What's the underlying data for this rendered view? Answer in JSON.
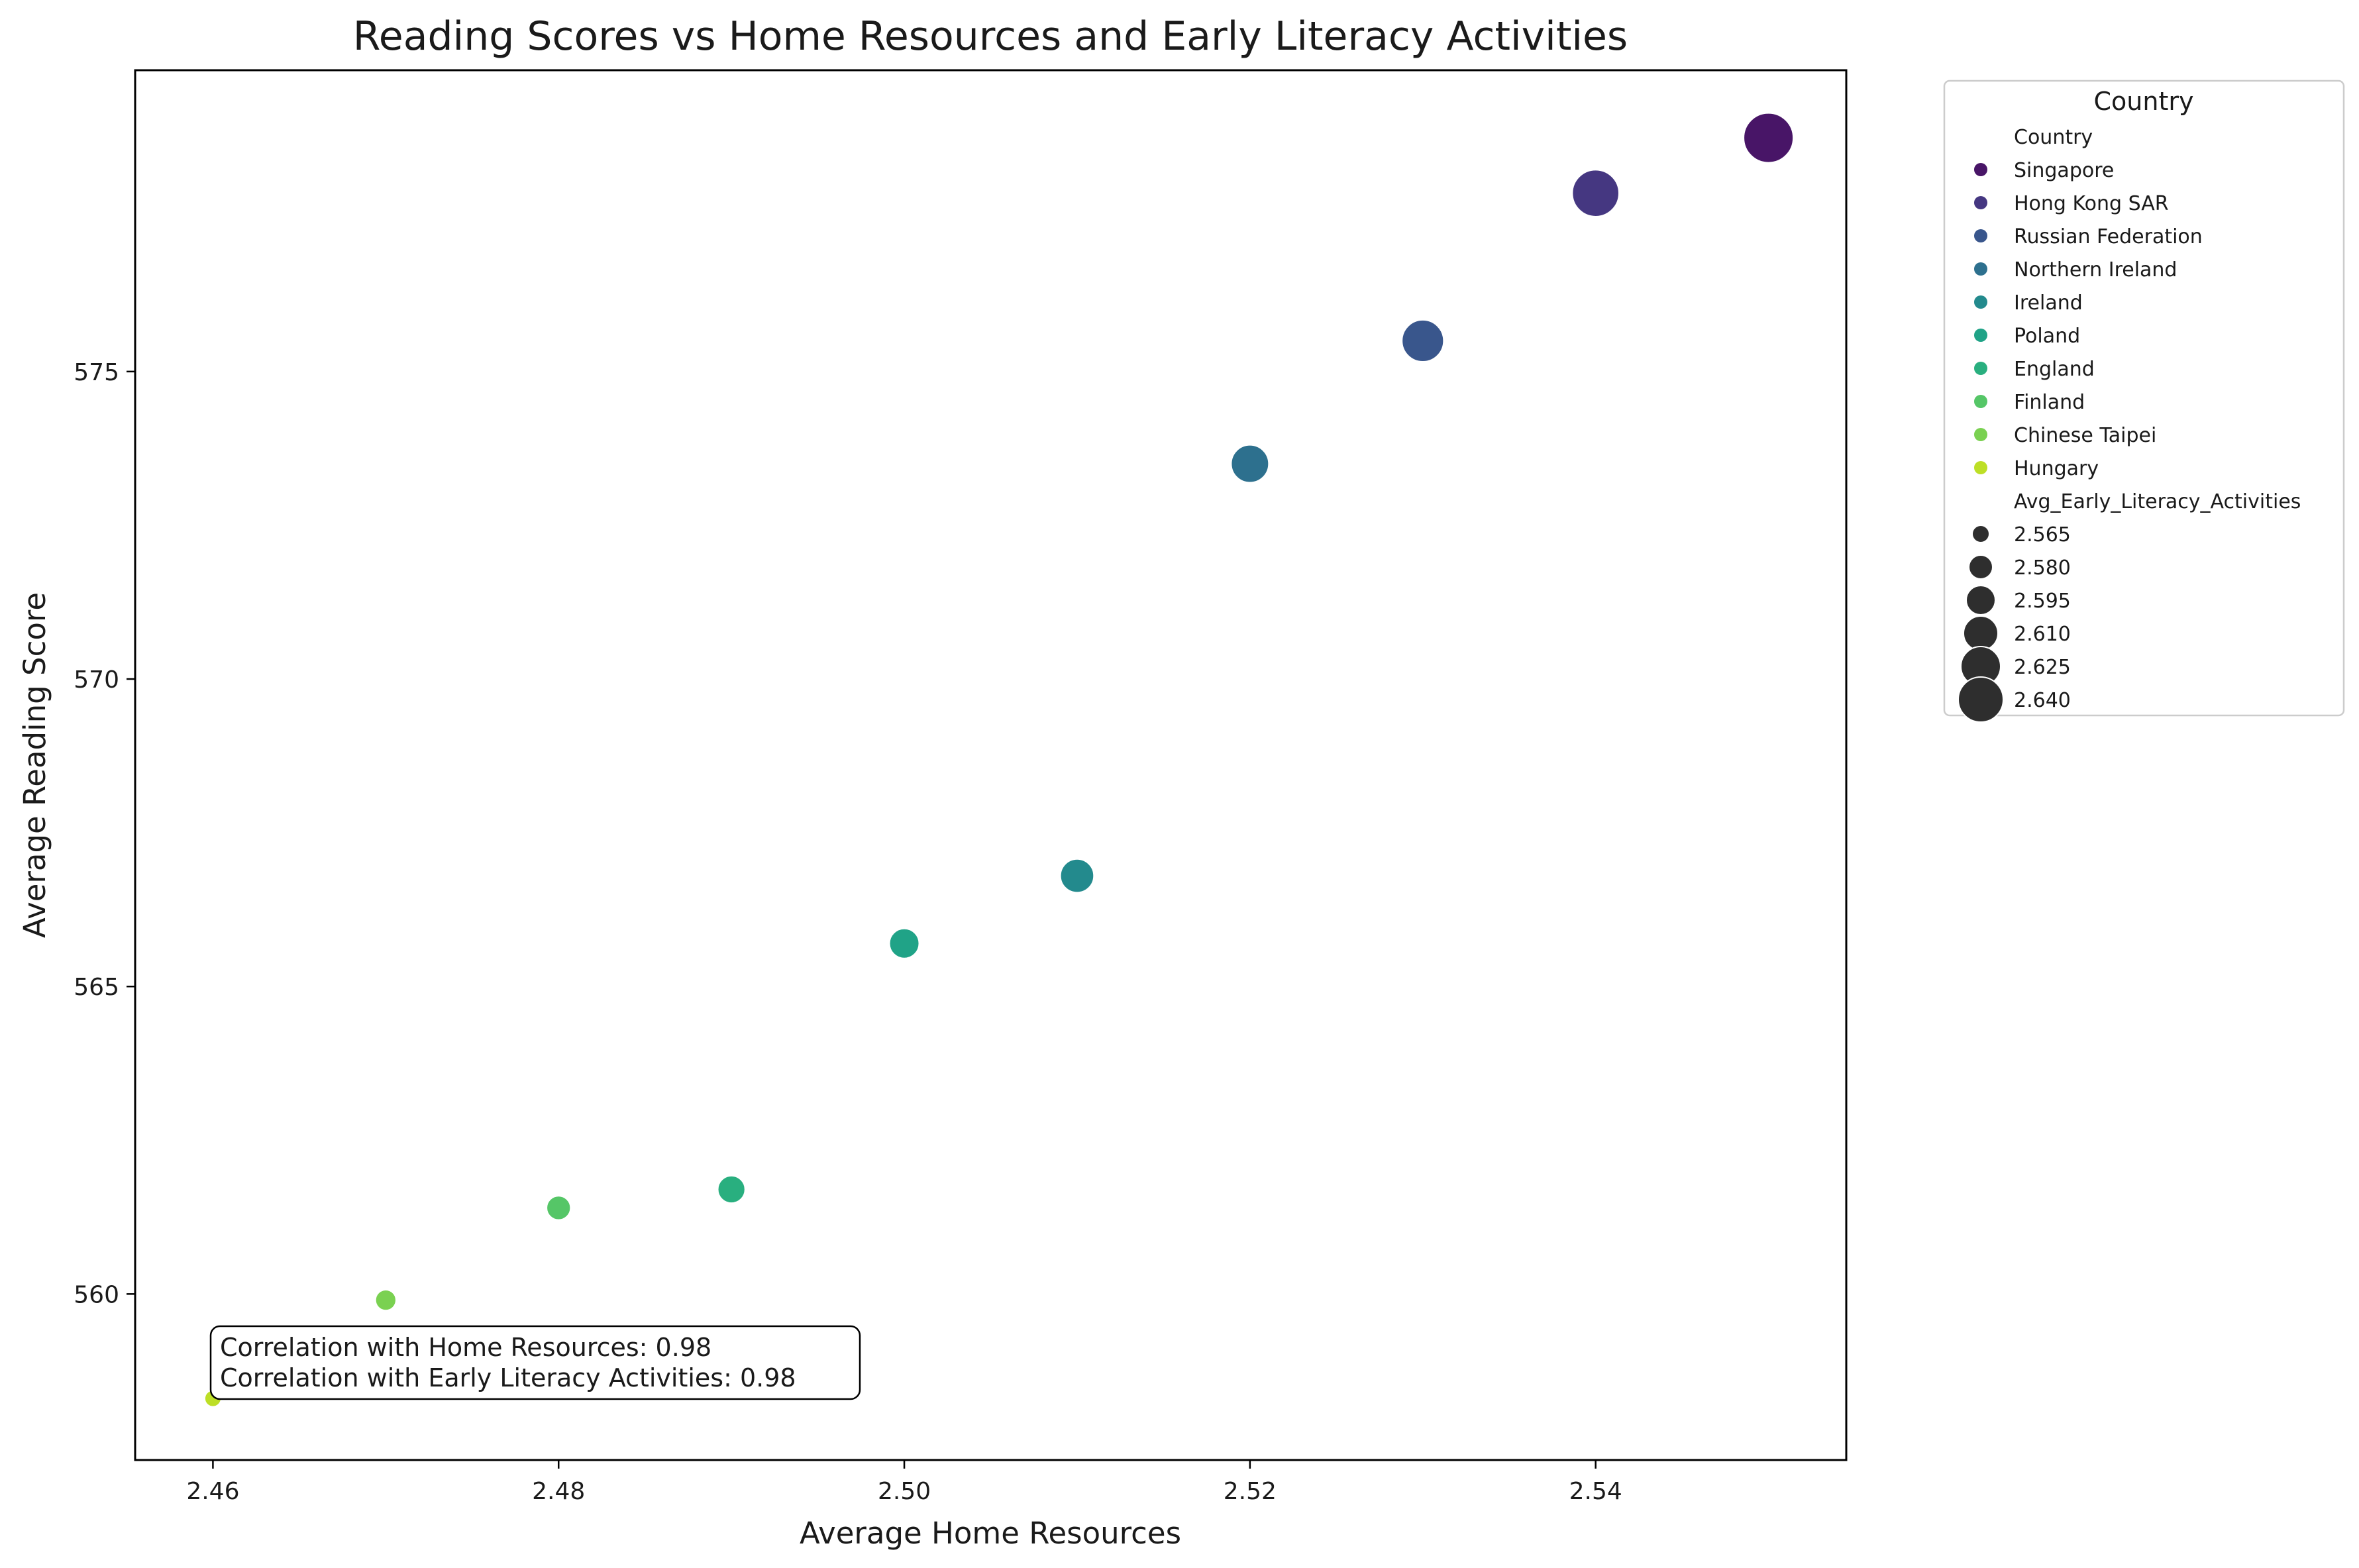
{
  "chart_data": {
    "type": "scatter",
    "title": "Reading Scores vs Home Resources and Early Literacy Activities",
    "xlabel": "Average Home Resources",
    "ylabel": "Average Reading Score",
    "xlim": [
      2.4555,
      2.5545
    ],
    "ylim": [
      557.3,
      579.9
    ],
    "x_ticks": [
      2.46,
      2.48,
      2.5,
      2.52,
      2.54
    ],
    "x_tick_labels": [
      "2.46",
      "2.48",
      "2.50",
      "2.52",
      "2.54"
    ],
    "y_ticks": [
      560,
      565,
      570,
      575
    ],
    "y_tick_labels": [
      "560",
      "565",
      "570",
      "575"
    ],
    "grid": false,
    "legend_placement": "outside-upper-right",
    "series": [
      {
        "name": "Singapore",
        "x": 2.55,
        "y": 578.8,
        "size": 2.641,
        "color": "#481567"
      },
      {
        "name": "Hong Kong SAR",
        "x": 2.54,
        "y": 577.9,
        "size": 2.634,
        "color": "#453781"
      },
      {
        "name": "Russian Federation",
        "x": 2.53,
        "y": 575.5,
        "size": 2.622,
        "color": "#39568c"
      },
      {
        "name": "Northern Ireland",
        "x": 2.52,
        "y": 573.5,
        "size": 2.612,
        "color": "#2d708e"
      },
      {
        "name": "Ireland",
        "x": 2.51,
        "y": 566.8,
        "size": 2.602,
        "color": "#238a8d"
      },
      {
        "name": "Poland",
        "x": 2.5,
        "y": 565.7,
        "size": 2.593,
        "color": "#20a387"
      },
      {
        "name": "England",
        "x": 2.49,
        "y": 561.7,
        "size": 2.587,
        "color": "#29af7f"
      },
      {
        "name": "Finland",
        "x": 2.48,
        "y": 561.4,
        "size": 2.579,
        "color": "#55c667"
      },
      {
        "name": "Chinese Taipei",
        "x": 2.47,
        "y": 559.9,
        "size": 2.571,
        "color": "#7ad151"
      },
      {
        "name": "Hungary",
        "x": 2.46,
        "y": 558.3,
        "size": 2.561,
        "color": "#bddf26"
      }
    ],
    "size_variable": "Avg_Early_Literacy_Activities",
    "legend": {
      "title": "Country",
      "hue_header": "Country",
      "size_header": "Avg_Early_Literacy_Activities",
      "size_entries": [
        {
          "label": "2.565",
          "value": 2.565
        },
        {
          "label": "2.580",
          "value": 2.58
        },
        {
          "label": "2.595",
          "value": 2.595
        },
        {
          "label": "2.610",
          "value": 2.61
        },
        {
          "label": "2.625",
          "value": 2.625
        },
        {
          "label": "2.640",
          "value": 2.64
        }
      ],
      "size_color": "#2e2e2e"
    },
    "annotation": {
      "lines": [
        "Correlation with Home Resources: 0.98",
        "Correlation with Early Literacy Activities: 0.98"
      ]
    }
  }
}
